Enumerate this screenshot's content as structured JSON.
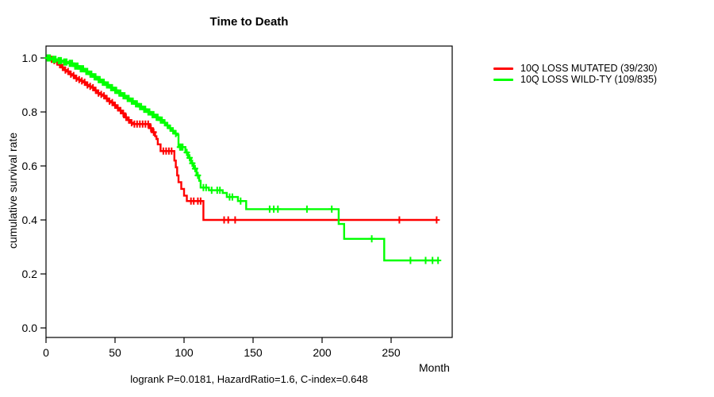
{
  "title": "Time to Death",
  "y_axis_label": "cumulative survival rate",
  "x_axis_label": "Month",
  "footer": "logrank P=0.0181, HazardRatio=1.6, C-index=0.648",
  "legend": [
    {
      "label": "10Q LOSS MUTATED (39/230)",
      "color": "#ff0000"
    },
    {
      "label": "10Q LOSS WILD-TY (109/835)",
      "color": "#00ff00"
    }
  ],
  "chart_data": {
    "type": "line",
    "subtype": "kaplan-meier-step-survival",
    "title": "Time to Death",
    "xlabel": "Month",
    "ylabel": "cumulative survival rate",
    "xlim": [
      0,
      294
    ],
    "ylim": [
      0.0,
      1.0
    ],
    "x_ticks": [
      0,
      50,
      100,
      150,
      200,
      250
    ],
    "y_ticks": [
      0.0,
      0.2,
      0.4,
      0.6,
      0.8,
      1.0
    ],
    "grid": false,
    "legend_position": "right-outside",
    "stats": {
      "logrank_p": "0.0181",
      "hazard_ratio": "1.6",
      "c_index": "0.648"
    },
    "series": [
      {
        "name": "10Q LOSS MUTATED (39/230)",
        "color": "#ff0000",
        "events": "39/230",
        "end_month": 283,
        "points": [
          [
            0,
            1.0
          ],
          [
            3,
            0.995
          ],
          [
            5,
            0.99
          ],
          [
            7,
            0.985
          ],
          [
            9,
            0.975
          ],
          [
            11,
            0.965
          ],
          [
            13,
            0.955
          ],
          [
            15,
            0.95
          ],
          [
            17,
            0.94
          ],
          [
            19,
            0.935
          ],
          [
            21,
            0.925
          ],
          [
            23,
            0.92
          ],
          [
            25,
            0.915
          ],
          [
            27,
            0.91
          ],
          [
            29,
            0.9
          ],
          [
            31,
            0.895
          ],
          [
            33,
            0.89
          ],
          [
            35,
            0.88
          ],
          [
            37,
            0.87
          ],
          [
            39,
            0.865
          ],
          [
            41,
            0.86
          ],
          [
            43,
            0.85
          ],
          [
            45,
            0.84
          ],
          [
            47,
            0.835
          ],
          [
            49,
            0.825
          ],
          [
            51,
            0.815
          ],
          [
            53,
            0.805
          ],
          [
            55,
            0.795
          ],
          [
            57,
            0.78
          ],
          [
            59,
            0.77
          ],
          [
            61,
            0.76
          ],
          [
            63,
            0.755
          ],
          [
            75,
            0.74
          ],
          [
            77,
            0.725
          ],
          [
            79,
            0.71
          ],
          [
            80,
            0.7
          ],
          [
            81,
            0.68
          ],
          [
            83,
            0.655
          ],
          [
            93,
            0.62
          ],
          [
            94,
            0.595
          ],
          [
            95,
            0.565
          ],
          [
            96,
            0.54
          ],
          [
            98,
            0.515
          ],
          [
            100,
            0.49
          ],
          [
            102,
            0.47
          ],
          [
            114,
            0.4
          ]
        ],
        "censor_months": [
          4,
          6,
          8,
          10,
          12,
          14,
          16,
          18,
          20,
          22,
          24,
          26,
          28,
          30,
          32,
          34,
          36,
          38,
          40,
          42,
          44,
          46,
          48,
          50,
          52,
          54,
          56,
          58,
          60,
          62,
          64,
          66,
          68,
          70,
          72,
          74,
          76,
          78,
          85,
          87,
          89,
          91,
          105,
          107,
          110,
          112,
          129,
          132,
          137,
          256,
          283
        ]
      },
      {
        "name": "10Q LOSS WILD-TY (109/835)",
        "color": "#00ff00",
        "events": "109/835",
        "end_month": 284,
        "points": [
          [
            0,
            1.0
          ],
          [
            4,
            0.995
          ],
          [
            8,
            0.99
          ],
          [
            12,
            0.985
          ],
          [
            16,
            0.98
          ],
          [
            20,
            0.97
          ],
          [
            24,
            0.96
          ],
          [
            28,
            0.95
          ],
          [
            31,
            0.94
          ],
          [
            34,
            0.93
          ],
          [
            37,
            0.92
          ],
          [
            40,
            0.91
          ],
          [
            43,
            0.9
          ],
          [
            46,
            0.89
          ],
          [
            49,
            0.88
          ],
          [
            52,
            0.87
          ],
          [
            55,
            0.86
          ],
          [
            58,
            0.85
          ],
          [
            61,
            0.84
          ],
          [
            64,
            0.83
          ],
          [
            67,
            0.82
          ],
          [
            70,
            0.81
          ],
          [
            73,
            0.8
          ],
          [
            76,
            0.79
          ],
          [
            79,
            0.78
          ],
          [
            82,
            0.77
          ],
          [
            85,
            0.76
          ],
          [
            87,
            0.75
          ],
          [
            89,
            0.74
          ],
          [
            91,
            0.73
          ],
          [
            93,
            0.72
          ],
          [
            95,
            0.715
          ],
          [
            96,
            0.67
          ],
          [
            101,
            0.65
          ],
          [
            103,
            0.63
          ],
          [
            105,
            0.61
          ],
          [
            107,
            0.59
          ],
          [
            109,
            0.565
          ],
          [
            111,
            0.545
          ],
          [
            112,
            0.52
          ],
          [
            118,
            0.51
          ],
          [
            128,
            0.5
          ],
          [
            131,
            0.485
          ],
          [
            139,
            0.47
          ],
          [
            145,
            0.44
          ],
          [
            212,
            0.385
          ],
          [
            216,
            0.33
          ],
          [
            245,
            0.25
          ]
        ],
        "censor_months": [
          1,
          2,
          3,
          5,
          6,
          7,
          9,
          10,
          11,
          13,
          14,
          15,
          17,
          18,
          19,
          21,
          22,
          23,
          25,
          26,
          27,
          29,
          30,
          32,
          33,
          35,
          36,
          38,
          39,
          41,
          42,
          44,
          45,
          47,
          48,
          50,
          51,
          53,
          54,
          56,
          57,
          59,
          60,
          62,
          63,
          65,
          66,
          68,
          69,
          71,
          72,
          74,
          75,
          77,
          78,
          80,
          81,
          83,
          84,
          86,
          88,
          90,
          92,
          94,
          97,
          98,
          99,
          102,
          104,
          106,
          108,
          110,
          114,
          116,
          120,
          124,
          126,
          133,
          135,
          141,
          162,
          165,
          168,
          189,
          207,
          236,
          264,
          275,
          280,
          284
        ]
      }
    ]
  }
}
